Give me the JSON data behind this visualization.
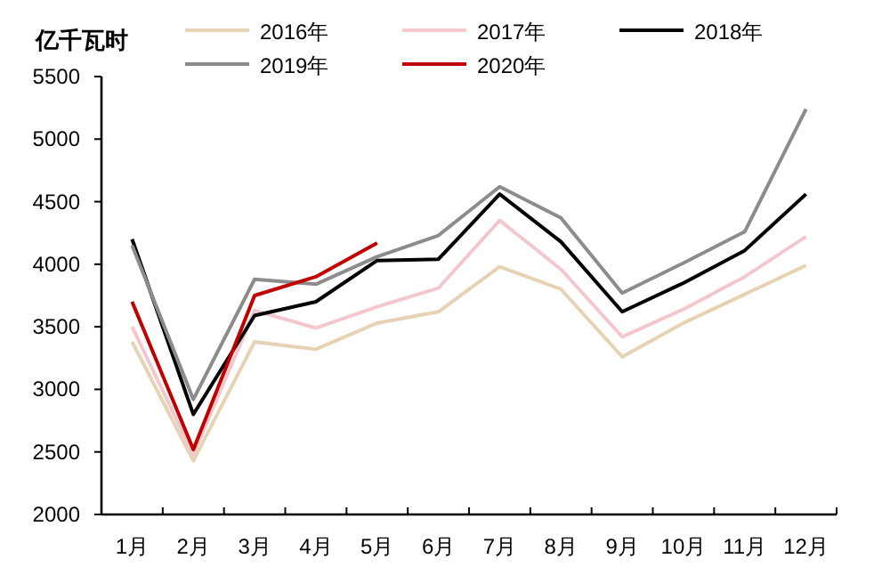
{
  "chart_data": {
    "type": "line",
    "ylabel": "亿千瓦时",
    "categories": [
      "1月",
      "2月",
      "3月",
      "4月",
      "5月",
      "6月",
      "7月",
      "8月",
      "9月",
      "10月",
      "11月",
      "12月"
    ],
    "ylim": [
      2000,
      5500
    ],
    "yticks": [
      2000,
      2500,
      3000,
      3500,
      4000,
      4500,
      5000,
      5500
    ],
    "grid": false,
    "legend": "top",
    "marker": "none",
    "line_style": "solid",
    "series": [
      {
        "name": "2016年",
        "color": "#e6d3b3",
        "values": [
          3380,
          2430,
          3380,
          3320,
          3530,
          3620,
          3980,
          3800,
          3260,
          3530,
          3760,
          3990
        ]
      },
      {
        "name": "2017年",
        "color": "#f4c7cc",
        "values": [
          3500,
          2480,
          3630,
          3490,
          3660,
          3810,
          4350,
          3960,
          3420,
          3640,
          3900,
          4220
        ]
      },
      {
        "name": "2018年",
        "color": "#000000",
        "values": [
          4200,
          2800,
          3590,
          3700,
          4030,
          4040,
          4560,
          4180,
          3620,
          3850,
          4110,
          4560
        ]
      },
      {
        "name": "2019年",
        "color": "#8c8c8c",
        "values": [
          4150,
          2920,
          3880,
          3840,
          4060,
          4230,
          4620,
          4370,
          3770,
          4010,
          4260,
          5240
        ]
      },
      {
        "name": "2020年",
        "color": "#c00000",
        "values": [
          3700,
          2520,
          3750,
          3900,
          4170,
          null,
          null,
          null,
          null,
          null,
          null,
          null
        ]
      }
    ]
  }
}
